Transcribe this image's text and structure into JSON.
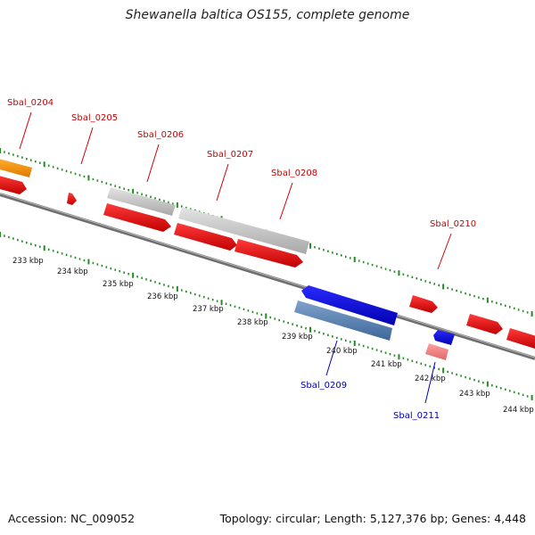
{
  "title": "Shewanella baltica OS155, complete genome",
  "footer": {
    "accession": "Accession: NC_009052",
    "topology": "Topology: circular; Length: 5,127,376 bp; Genes: 4,448"
  },
  "colors": {
    "forward_cds": "#ff0000",
    "reverse_cds": "#0000ff",
    "pseudo_gene": "#c8c8c8",
    "orange_gene": "#ff9900",
    "steelblue_gene": "#5a82b4",
    "pink_gene": "#f08080",
    "tick_green": "#228b22",
    "label_red": "#cc0000",
    "label_blue": "#0000aa",
    "backbone": "#777777"
  },
  "scale_labels": [
    "233 kbp",
    "234 kbp",
    "235 kbp",
    "236 kbp",
    "237 kbp",
    "238 kbp",
    "239 kbp",
    "240 kbp",
    "241 kbp",
    "242 kbp",
    "243 kbp",
    "244 kbp"
  ],
  "gene_labels": [
    {
      "id": "g204",
      "text": "Sbal_0204",
      "color": "red"
    },
    {
      "id": "g205",
      "text": "Sbal_0205",
      "color": "red"
    },
    {
      "id": "g206",
      "text": "Sbal_0206",
      "color": "red"
    },
    {
      "id": "g207",
      "text": "Sbal_0207",
      "color": "red"
    },
    {
      "id": "g208",
      "text": "Sbal_0208",
      "color": "red"
    },
    {
      "id": "g210",
      "text": "Sbal_0210",
      "color": "red"
    },
    {
      "id": "g209",
      "text": "Sbal_0209",
      "color": "blue"
    },
    {
      "id": "g211",
      "text": "Sbal_0211",
      "color": "blue"
    }
  ]
}
